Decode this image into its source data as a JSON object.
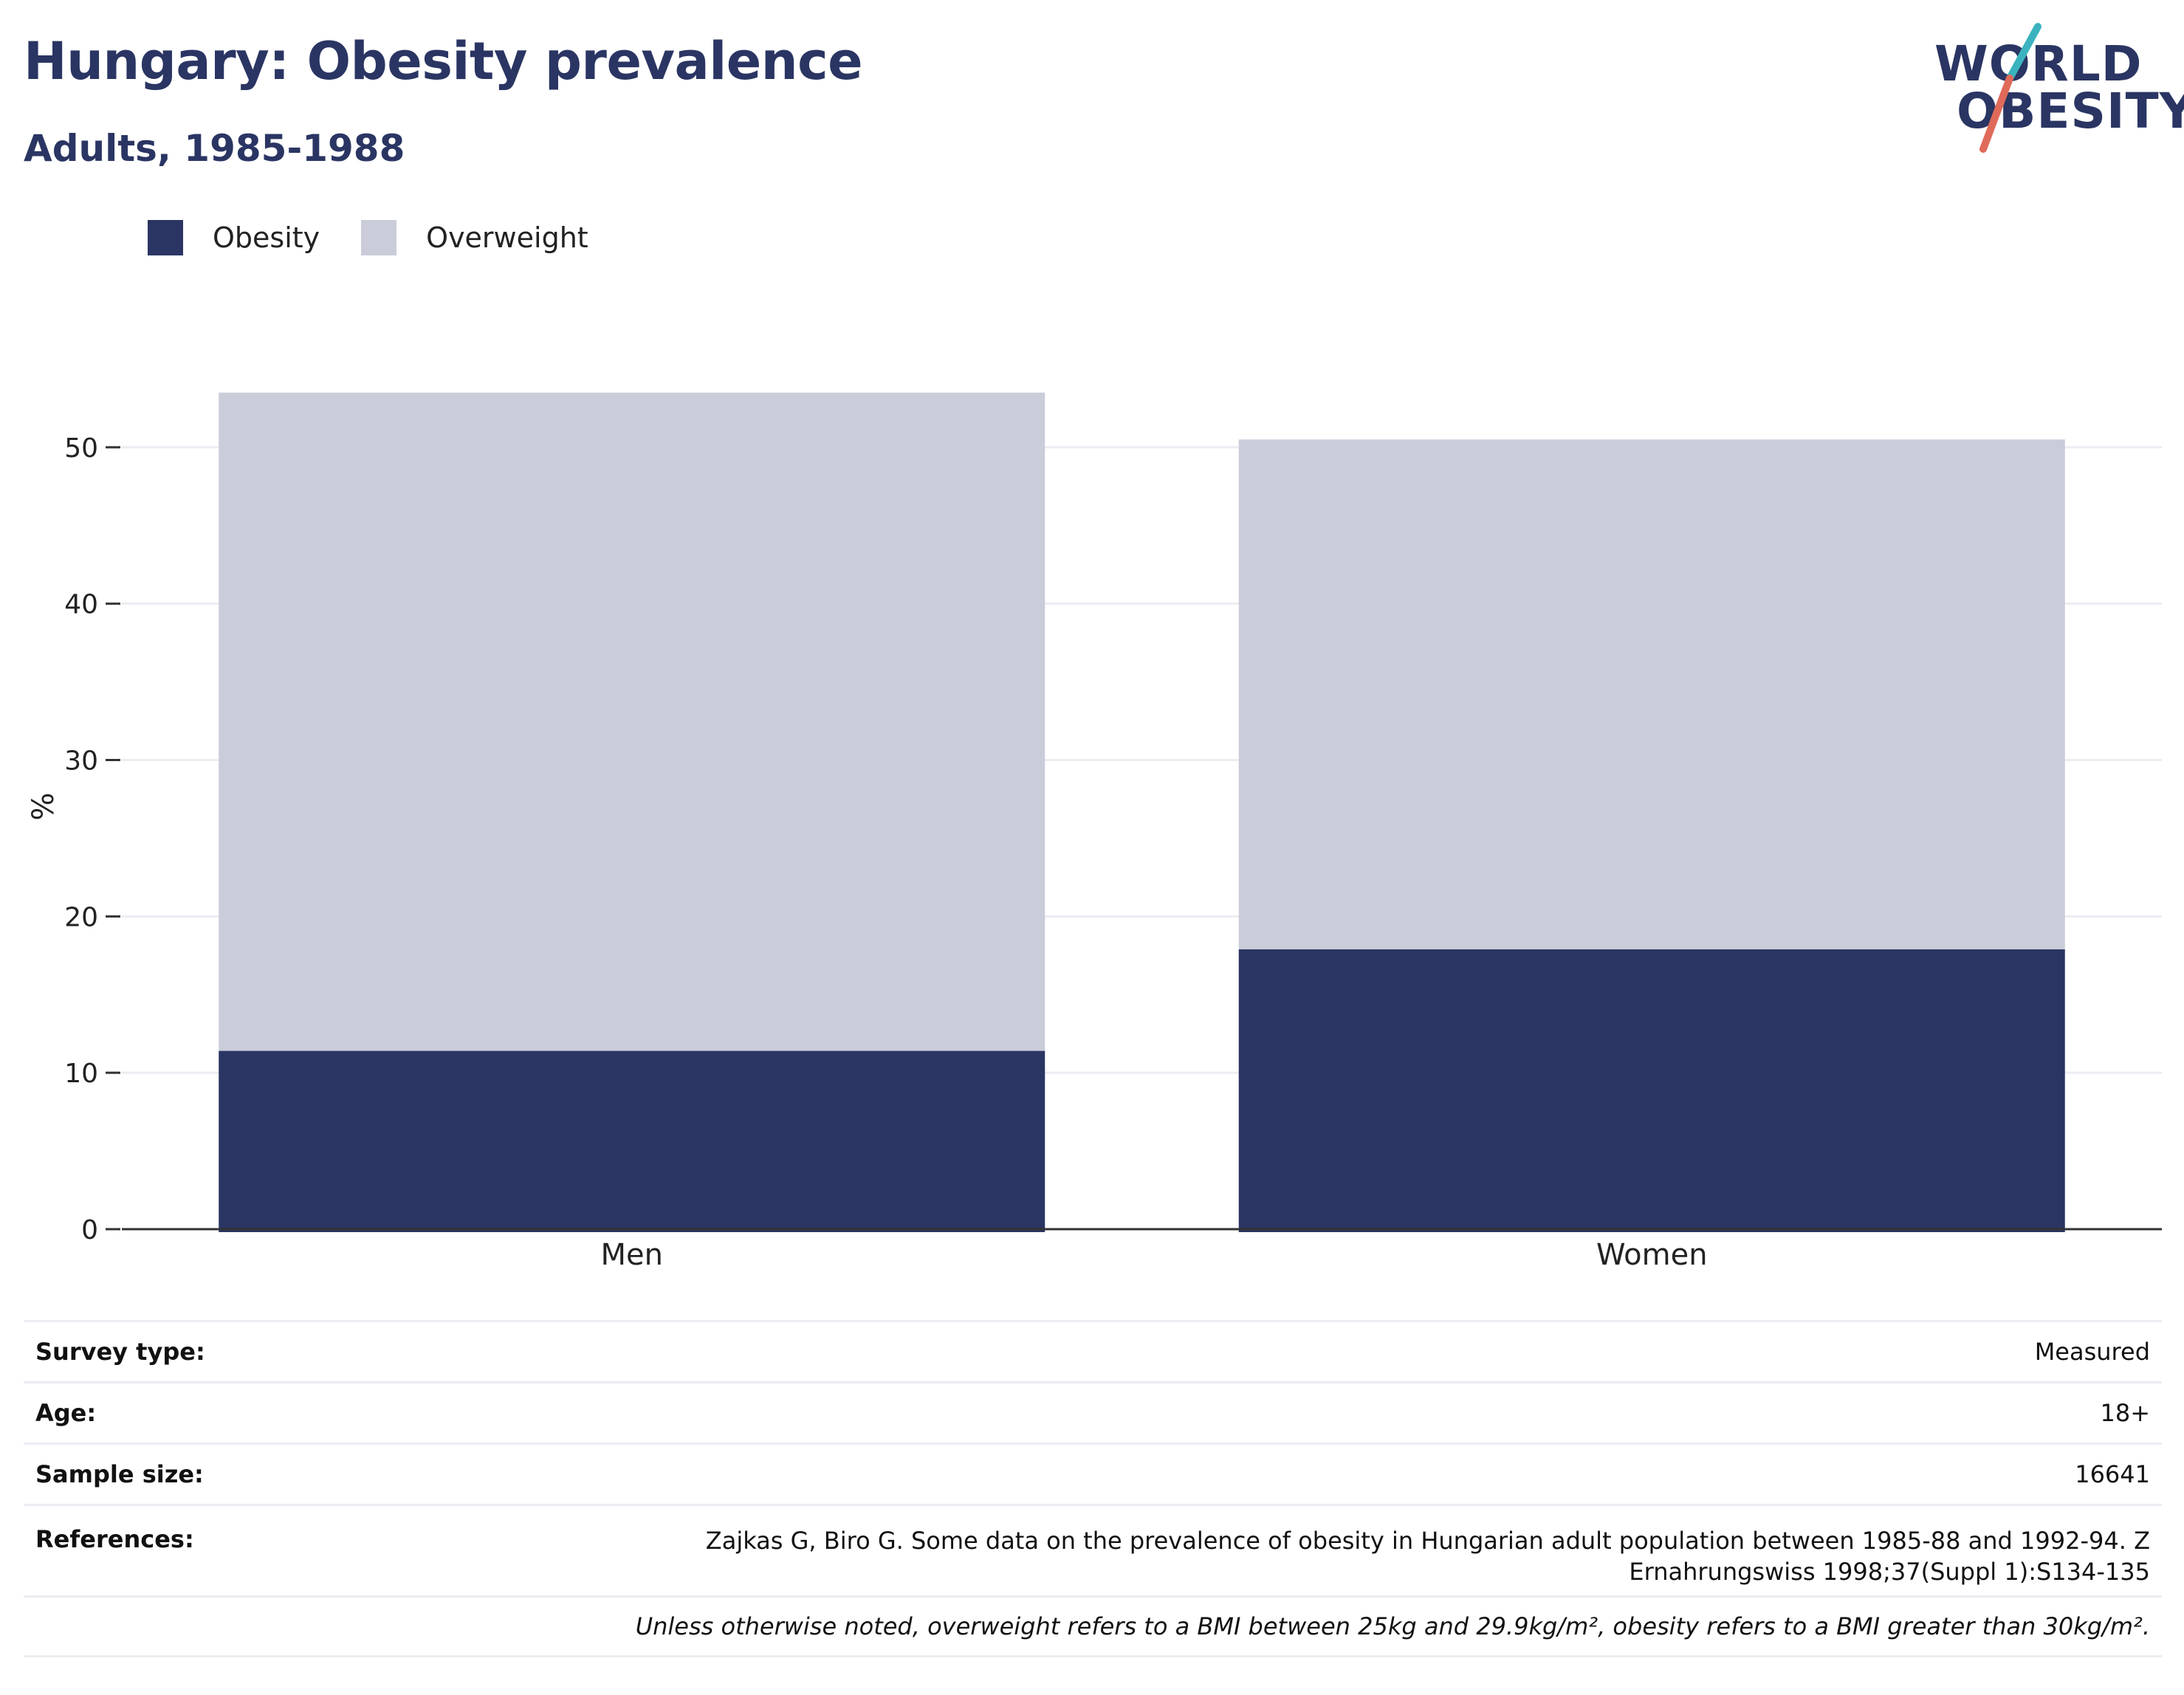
{
  "header": {
    "title": "Hungary: Obesity prevalence",
    "subtitle": "Adults, 1985-1988"
  },
  "logo": {
    "line1": "WORLD",
    "line2": "OBESITY",
    "accent_teal": "#3bb3bf",
    "accent_coral": "#e06a5a"
  },
  "colors": {
    "obesity": "#2a3563",
    "overweight": "#cacdd9",
    "grid": "#ececf2",
    "axis": "#333333"
  },
  "chart_data": {
    "type": "bar",
    "stacked": true,
    "categories": [
      "Men",
      "Women"
    ],
    "series": [
      {
        "name": "Obesity",
        "values": [
          11.4,
          17.9
        ],
        "color": "#2a3563"
      },
      {
        "name": "Overweight",
        "values": [
          42.1,
          32.6
        ],
        "color": "#cacdd9"
      }
    ],
    "ylabel": "%",
    "ylim": [
      0,
      55
    ],
    "yticks": [
      0,
      10,
      20,
      30,
      40,
      50
    ],
    "grid": true,
    "legend_position": "top-left"
  },
  "info": {
    "survey_type_label": "Survey type:",
    "survey_type_value": "Measured",
    "age_label": "Age:",
    "age_value": "18+",
    "sample_size_label": "Sample size:",
    "sample_size_value": "16641",
    "references_label": "References:",
    "references_line1": "Zajkas G, Biro G. Some data on the prevalence of obesity in Hungarian adult population between 1985-88 and 1992-94. Z",
    "references_line2": "Ernahrungswiss 1998;37(Suppl 1):S134-135",
    "note": "Unless otherwise noted, overweight refers to a BMI between 25kg and 29.9kg/m², obesity refers to a BMI greater than 30kg/m²."
  }
}
